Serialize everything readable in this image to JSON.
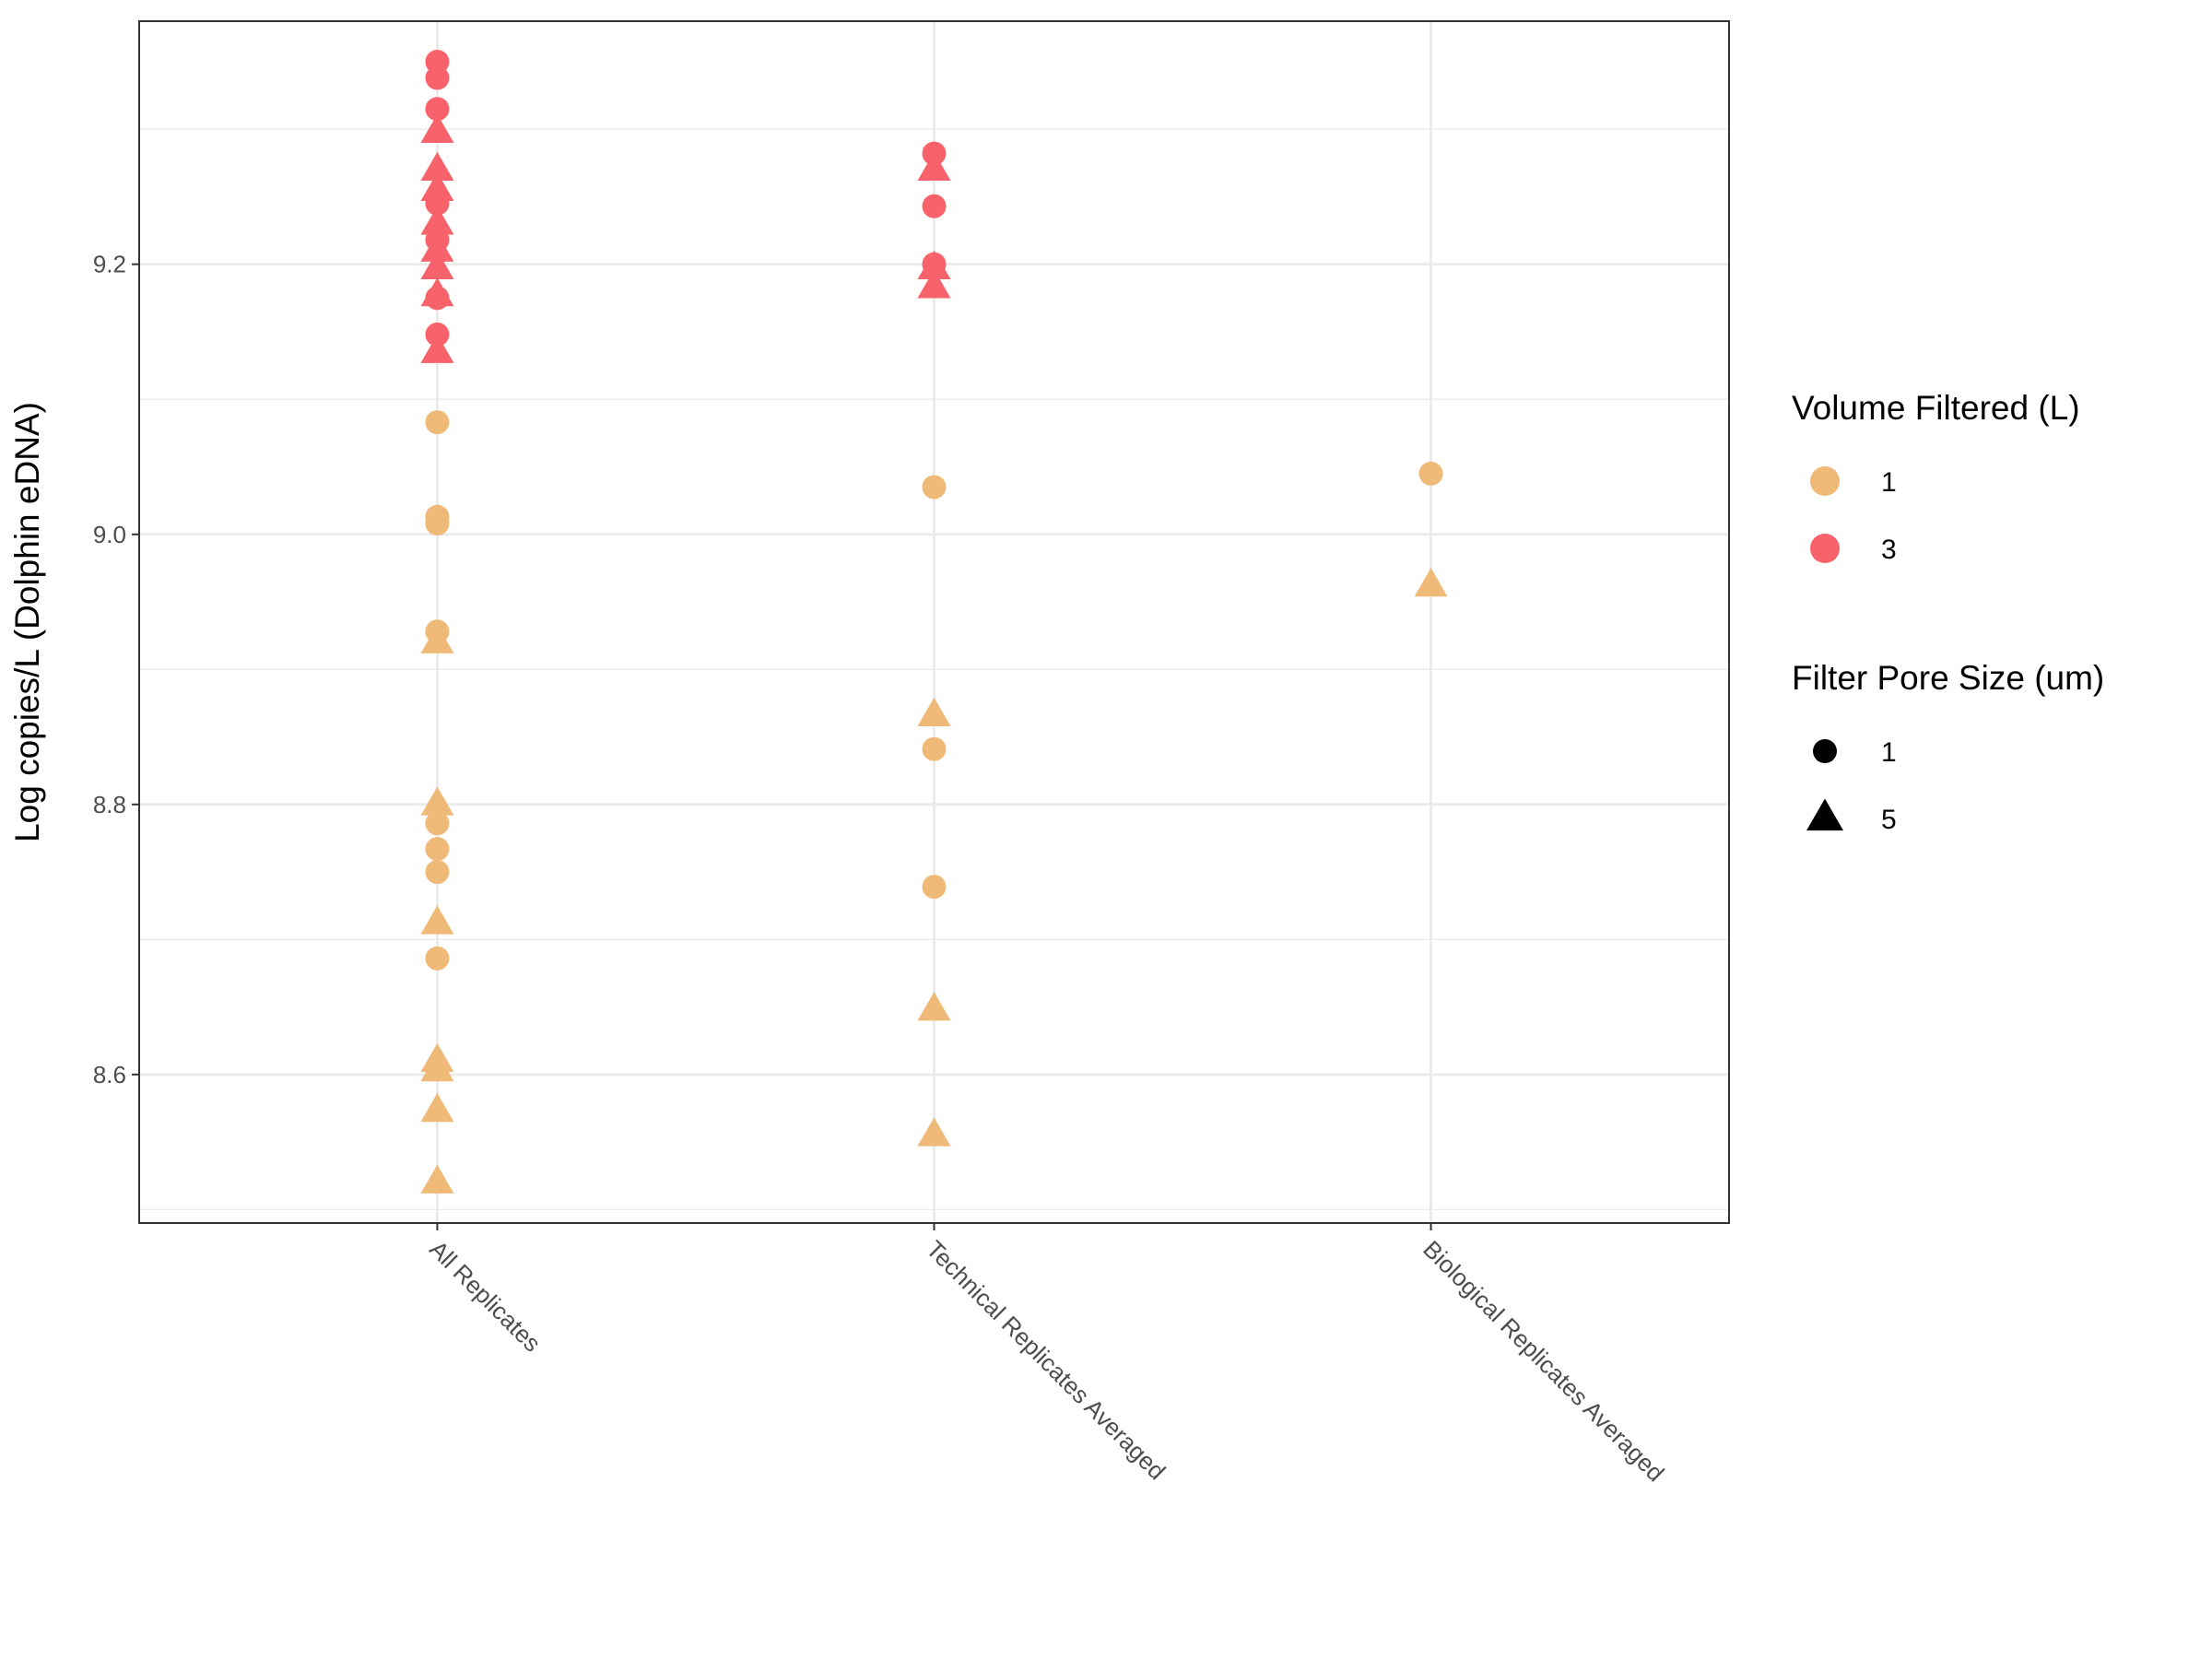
{
  "chart_data": {
    "type": "scatter",
    "title": "",
    "xlabel": "",
    "ylabel": "Log copies/L (Dolphin eDNA)",
    "categories": [
      "All Replicates",
      "Technical Replicates Averaged",
      "Biological Replicates Averaged"
    ],
    "ylim": [
      8.49,
      9.38
    ],
    "y_ticks": [
      8.6,
      8.8,
      9.0,
      9.2
    ],
    "y_tick_labels": [
      "8.6",
      "8.8",
      "9.0",
      "9.2"
    ],
    "grid": true,
    "legend_position": "right",
    "legends": [
      {
        "title": "Volume Filtered (L)",
        "entries": [
          {
            "label": "1",
            "color": "#EFB978",
            "shape": "circle"
          },
          {
            "label": "3",
            "color": "#F8626A",
            "shape": "circle"
          }
        ]
      },
      {
        "title": "Filter Pore Size (um)",
        "entries": [
          {
            "label": "1",
            "color": "#000000",
            "shape": "circle"
          },
          {
            "label": "5",
            "color": "#000000",
            "shape": "triangle"
          }
        ]
      }
    ],
    "series": [
      {
        "volume": "3",
        "pore": "1",
        "color": "#F8626A",
        "shape": "circle",
        "points": [
          {
            "category": "All Replicates",
            "y": 9.35
          },
          {
            "category": "All Replicates",
            "y": 9.338
          },
          {
            "category": "All Replicates",
            "y": 9.315
          },
          {
            "category": "All Replicates",
            "y": 9.245
          },
          {
            "category": "All Replicates",
            "y": 9.218
          },
          {
            "category": "All Replicates",
            "y": 9.175
          },
          {
            "category": "All Replicates",
            "y": 9.148
          },
          {
            "category": "Technical Replicates Averaged",
            "y": 9.282
          },
          {
            "category": "Technical Replicates Averaged",
            "y": 9.243
          },
          {
            "category": "Technical Replicates Averaged",
            "y": 9.2
          }
        ]
      },
      {
        "volume": "3",
        "pore": "5",
        "color": "#F8626A",
        "shape": "triangle",
        "points": [
          {
            "category": "All Replicates",
            "y": 9.298
          },
          {
            "category": "All Replicates",
            "y": 9.27
          },
          {
            "category": "All Replicates",
            "y": 9.255
          },
          {
            "category": "All Replicates",
            "y": 9.23
          },
          {
            "category": "All Replicates",
            "y": 9.21
          },
          {
            "category": "All Replicates",
            "y": 9.197
          },
          {
            "category": "All Replicates",
            "y": 9.177
          },
          {
            "category": "All Replicates",
            "y": 9.135
          },
          {
            "category": "Technical Replicates Averaged",
            "y": 9.27
          },
          {
            "category": "Technical Replicates Averaged",
            "y": 9.197
          },
          {
            "category": "Technical Replicates Averaged",
            "y": 9.183
          }
        ]
      },
      {
        "volume": "1",
        "pore": "1",
        "color": "#EFB978",
        "shape": "circle",
        "points": [
          {
            "category": "All Replicates",
            "y": 9.083
          },
          {
            "category": "All Replicates",
            "y": 9.013
          },
          {
            "category": "All Replicates",
            "y": 9.008
          },
          {
            "category": "All Replicates",
            "y": 8.928
          },
          {
            "category": "All Replicates",
            "y": 8.786
          },
          {
            "category": "All Replicates",
            "y": 8.767
          },
          {
            "category": "All Replicates",
            "y": 8.75
          },
          {
            "category": "All Replicates",
            "y": 8.686
          },
          {
            "category": "Technical Replicates Averaged",
            "y": 9.035
          },
          {
            "category": "Technical Replicates Averaged",
            "y": 8.841
          },
          {
            "category": "Technical Replicates Averaged",
            "y": 8.739
          },
          {
            "category": "Biological Replicates Averaged",
            "y": 9.045
          }
        ]
      },
      {
        "volume": "1",
        "pore": "5",
        "color": "#EFB978",
        "shape": "triangle",
        "points": [
          {
            "category": "All Replicates",
            "y": 8.92
          },
          {
            "category": "All Replicates",
            "y": 8.8
          },
          {
            "category": "All Replicates",
            "y": 8.712
          },
          {
            "category": "All Replicates",
            "y": 8.61
          },
          {
            "category": "All Replicates",
            "y": 8.603
          },
          {
            "category": "All Replicates",
            "y": 8.573
          },
          {
            "category": "All Replicates",
            "y": 8.52
          },
          {
            "category": "Technical Replicates Averaged",
            "y": 8.866
          },
          {
            "category": "Technical Replicates Averaged",
            "y": 8.648
          },
          {
            "category": "Technical Replicates Averaged",
            "y": 8.555
          },
          {
            "category": "Biological Replicates Averaged",
            "y": 8.962
          }
        ]
      }
    ]
  }
}
